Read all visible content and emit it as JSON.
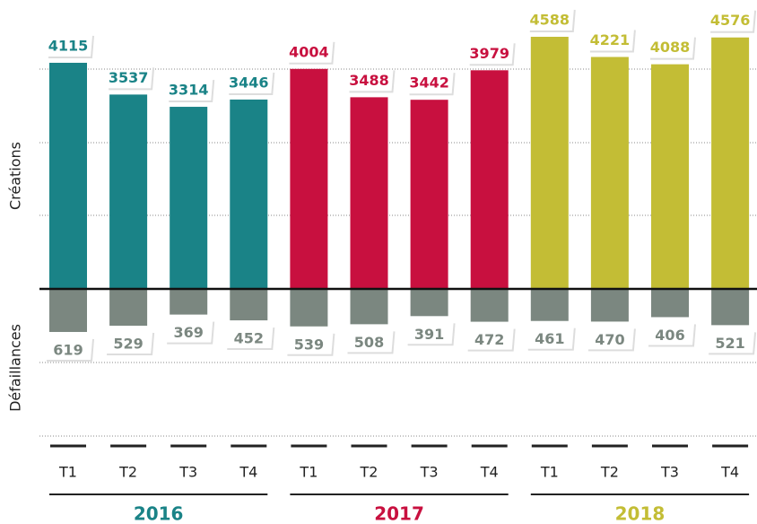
{
  "chart_data": {
    "type": "diverging_bar",
    "categories": [
      "T1",
      "T2",
      "T3",
      "T4",
      "T1",
      "T2",
      "T3",
      "T4",
      "T1",
      "T2",
      "T3",
      "T4"
    ],
    "groups": [
      {
        "label": "2016",
        "color": "#1a8387",
        "size": 4
      },
      {
        "label": "2017",
        "color": "#c8103f",
        "size": 4
      },
      {
        "label": "2018",
        "color": "#c3bd35",
        "size": 4
      }
    ],
    "y_label": "Créations",
    "y2_label": "Défaillances",
    "series": [
      {
        "name": "Créations",
        "values": [
          4115,
          3537,
          3314,
          3446,
          4004,
          3488,
          3442,
          3979,
          4588,
          4221,
          4088,
          4576
        ]
      },
      {
        "name": "Défaillances",
        "color": "#7b8780",
        "axis": "y2",
        "values": [
          619,
          529,
          369,
          452,
          539,
          508,
          391,
          472,
          461,
          470,
          406,
          521
        ]
      }
    ],
    "ylim": [
      0,
      4500
    ],
    "y2lim": [
      0,
      2000
    ]
  }
}
